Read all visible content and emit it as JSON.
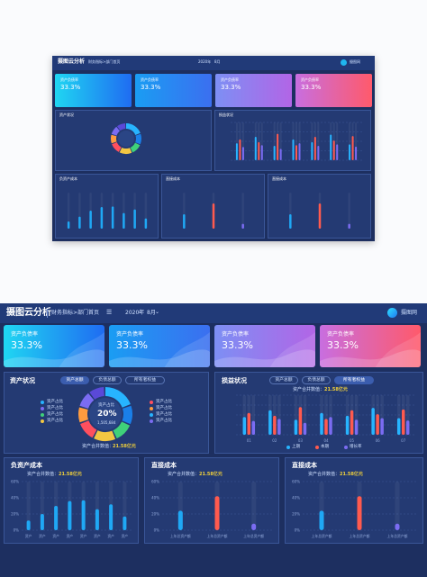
{
  "header": {
    "app_title": "摄图云分析",
    "nav_label": "财务指标>部门首页",
    "date_year": "2020年",
    "date_month": "8月",
    "user_name": "摄图网"
  },
  "kpi_cards": [
    {
      "label": "资产负债率",
      "value": "33.3%",
      "grad": [
        "#1fd6f2",
        "#1f6cf2"
      ]
    },
    {
      "label": "资产负债率",
      "value": "33.3%",
      "grad": [
        "#1a9df3",
        "#3b6ff0"
      ]
    },
    {
      "label": "资产负债率",
      "value": "33.3%",
      "grad": [
        "#7d8ff4",
        "#b265e6"
      ]
    },
    {
      "label": "资产负债率",
      "value": "33.3%",
      "grad": [
        "#c86ee0",
        "#ff5a6b"
      ]
    }
  ],
  "asset_status": {
    "title": "资产状况",
    "tabs": [
      "资产总额",
      "负债总额",
      "所有者权益"
    ],
    "active_tab": 0,
    "legend_left": [
      {
        "label": "资产占比",
        "color": "#27b4ff"
      },
      {
        "label": "资产占比",
        "color": "#7b6cf2"
      },
      {
        "label": "资产占比",
        "color": "#3fd17a"
      },
      {
        "label": "资产占比",
        "color": "#f3c742"
      }
    ],
    "legend_right": [
      {
        "label": "资产占比",
        "color": "#ff4f5e"
      },
      {
        "label": "资产占比",
        "color": "#ff9b3f"
      },
      {
        "label": "资产占比",
        "color": "#27b4ff"
      },
      {
        "label": "资产占比",
        "color": "#7b6cf2"
      }
    ],
    "donut_label": "资产占比",
    "donut_value": "20%",
    "donut_sub": "1,505,684",
    "total_label": "资产合并数值：",
    "total_value": "21.58亿元"
  },
  "profit_status": {
    "title": "损益状况",
    "tabs": [
      "资产总额",
      "负债总额",
      "所有者权益"
    ],
    "active_tab": 2,
    "total_label": "资产合并数值：",
    "total_value": "21.58亿元",
    "legend": [
      {
        "label": "上期",
        "color": "#27b4ff"
      },
      {
        "label": "本期",
        "color": "#ff5a4e"
      },
      {
        "label": "增长率",
        "color": "#7b6cf2"
      }
    ]
  },
  "liability_cost": {
    "title": "负资产成本",
    "total_label": "资产合并数值：",
    "total_value": "21.58亿元"
  },
  "direct_cost_1": {
    "title": "直接成本",
    "total_label": "资产合并数值：",
    "total_value": "21.58亿元"
  },
  "direct_cost_2": {
    "title": "直接成本",
    "total_label": "资产合并数值：",
    "total_value": "21.58亿元"
  },
  "chart_data": [
    {
      "type": "pie",
      "title": "",
      "labels": [
        "资产占比",
        "资产占比",
        "资产占比",
        "资产占比",
        "资产占比",
        "资产占比",
        "资产占比",
        "资产占比"
      ],
      "values": [
        20,
        12,
        12,
        14,
        12,
        10,
        10,
        10
      ],
      "colors": [
        "#27b4ff",
        "#1a7fe8",
        "#3fd17a",
        "#f3c742",
        "#ff4f5e",
        "#ff9b3f",
        "#7b6cf2",
        "#5a49d8"
      ]
    },
    {
      "type": "bar",
      "title": "",
      "categories": [
        "01",
        "02",
        "03",
        "04",
        "05",
        "06",
        "07"
      ],
      "ylim": [
        0,
        100
      ],
      "series": [
        {
          "name": "上期",
          "values": [
            45,
            62,
            38,
            55,
            48,
            68,
            42
          ],
          "color": "#27b4ff"
        },
        {
          "name": "本期",
          "values": [
            55,
            48,
            70,
            40,
            62,
            52,
            64
          ],
          "color": "#ff5a4e"
        },
        {
          "name": "增长率",
          "values": [
            35,
            40,
            30,
            45,
            38,
            42,
            36
          ],
          "color": "#7b6cf2"
        }
      ]
    },
    {
      "type": "bar",
      "title": "",
      "categories": [
        "资产",
        "资产",
        "资产",
        "资产",
        "资产",
        "资产",
        "资产",
        "资产"
      ],
      "yticks": [
        "60%",
        "40%",
        "20%",
        "0%"
      ],
      "ylim": [
        0,
        60
      ],
      "values": [
        12,
        20,
        30,
        36,
        37,
        26,
        32,
        17
      ],
      "color": "#1fa8f5"
    },
    {
      "type": "bar",
      "title": "",
      "categories": [
        "上年总资产额",
        "上年总资产额",
        "上年总资产额"
      ],
      "yticks": [
        "60%",
        "40%",
        "20%",
        "0%"
      ],
      "ylim": [
        0,
        60
      ],
      "values": [
        24,
        42,
        8
      ],
      "colors": [
        "#1fa8f5",
        "#ff5a4e",
        "#7b6cf2"
      ]
    },
    {
      "type": "bar",
      "title": "",
      "categories": [
        "上年总资产额",
        "上年总资产额",
        "上年总资产额"
      ],
      "yticks": [
        "60%",
        "40%",
        "20%",
        "0%"
      ],
      "ylim": [
        0,
        60
      ],
      "values": [
        24,
        42,
        8
      ],
      "colors": [
        "#1fa8f5",
        "#ff5a4e",
        "#7b6cf2"
      ]
    }
  ]
}
